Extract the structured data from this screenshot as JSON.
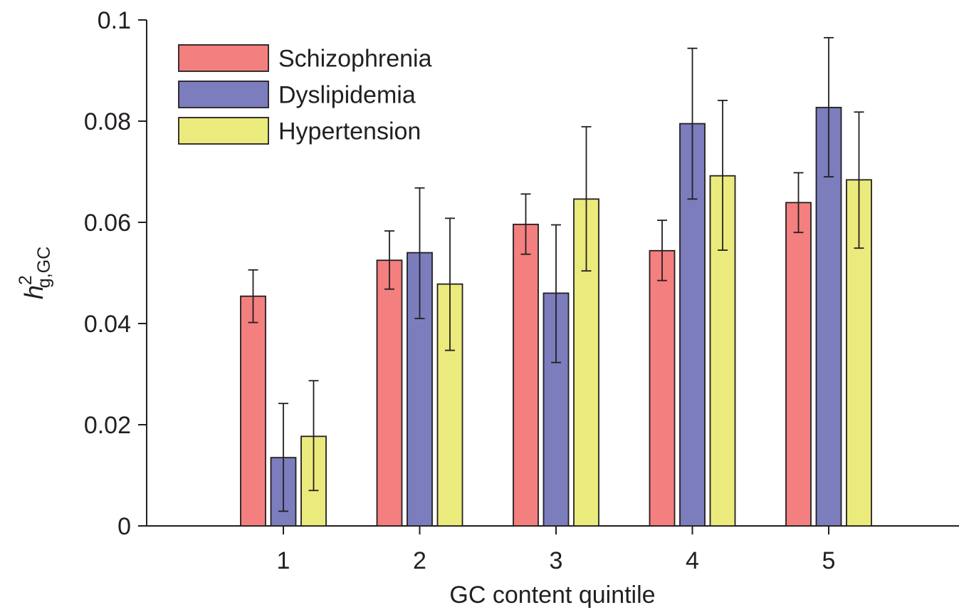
{
  "chart_data": {
    "type": "bar",
    "categories": [
      "1",
      "2",
      "3",
      "4",
      "5"
    ],
    "xlabel": "GC content quintile",
    "ylabel": {
      "main": "h",
      "superscript": "2",
      "subscript": "g,GC"
    },
    "ylim": [
      0,
      0.1
    ],
    "yticks": [
      0,
      0.02,
      0.04,
      0.06,
      0.08,
      0.1
    ],
    "ytick_labels": [
      "0",
      "0.02",
      "0.04",
      "0.06",
      "0.08",
      "0.1"
    ],
    "grid": false,
    "legend_position": "top-left",
    "series": [
      {
        "name": "Schizophrenia",
        "color": "#f47f7f",
        "values": [
          0.0454,
          0.0525,
          0.0596,
          0.0544,
          0.0639
        ],
        "err_low": [
          0.0402,
          0.0468,
          0.0537,
          0.0485,
          0.058
        ],
        "err_high": [
          0.0506,
          0.0583,
          0.0656,
          0.0604,
          0.0698
        ]
      },
      {
        "name": "Dyslipidemia",
        "color": "#7b7dbd",
        "values": [
          0.0135,
          0.054,
          0.046,
          0.0795,
          0.0827
        ],
        "err_low": [
          0.0029,
          0.041,
          0.0323,
          0.0646,
          0.069
        ],
        "err_high": [
          0.0242,
          0.0668,
          0.0595,
          0.0944,
          0.0965
        ]
      },
      {
        "name": "Hypertension",
        "color": "#eaeb7c",
        "values": [
          0.0177,
          0.0478,
          0.0646,
          0.0692,
          0.0684
        ],
        "err_low": [
          0.007,
          0.0347,
          0.0504,
          0.0545,
          0.0549
        ],
        "err_high": [
          0.0287,
          0.0608,
          0.0789,
          0.0841,
          0.0818
        ]
      }
    ]
  }
}
